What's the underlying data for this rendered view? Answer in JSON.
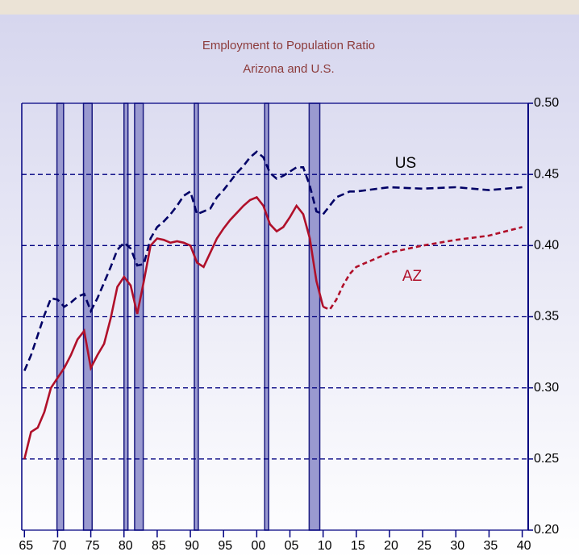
{
  "chart_data": {
    "type": "line",
    "title": "Employment to Population Ratio",
    "subtitle": "Arizona and U.S.",
    "x": [
      1965,
      1966,
      1967,
      1968,
      1969,
      1970,
      1971,
      1972,
      1973,
      1974,
      1975,
      1976,
      1977,
      1978,
      1979,
      1980,
      1981,
      1982,
      1983,
      1984,
      1985,
      1986,
      1987,
      1988,
      1989,
      1990,
      1991,
      1992,
      1993,
      1994,
      1995,
      1996,
      1997,
      1998,
      1999,
      2000,
      2001,
      2002,
      2003,
      2004,
      2005,
      2006,
      2007,
      2008,
      2009,
      2010,
      2011,
      2012,
      2013,
      2014,
      2015,
      2020,
      2025,
      2030,
      2035,
      2040
    ],
    "series": [
      {
        "name": "US",
        "color": "#000066",
        "style": "dashed",
        "values": [
          0.312,
          0.323,
          0.337,
          0.351,
          0.363,
          0.362,
          0.357,
          0.36,
          0.364,
          0.366,
          0.354,
          0.363,
          0.374,
          0.385,
          0.397,
          0.402,
          0.398,
          0.386,
          0.387,
          0.405,
          0.413,
          0.417,
          0.422,
          0.428,
          0.435,
          0.438,
          0.422,
          0.424,
          0.426,
          0.434,
          0.439,
          0.445,
          0.451,
          0.456,
          0.462,
          0.466,
          0.462,
          0.451,
          0.447,
          0.449,
          0.452,
          0.455,
          0.455,
          0.442,
          0.424,
          0.422,
          0.428,
          0.434,
          0.436,
          0.438,
          0.438,
          0.441,
          0.44,
          0.441,
          0.439,
          0.441
        ]
      },
      {
        "name": "AZ",
        "color": "#b0102a",
        "style": "solid",
        "values": [
          0.25,
          0.269,
          0.272,
          0.283,
          0.3,
          0.307,
          0.314,
          0.323,
          0.334,
          0.34,
          0.314,
          0.323,
          0.331,
          0.349,
          0.371,
          0.378,
          0.372,
          0.352,
          0.375,
          0.4,
          0.405,
          0.404,
          0.402,
          0.403,
          0.402,
          0.4,
          0.388,
          0.385,
          0.395,
          0.405,
          0.412,
          0.418,
          0.423,
          0.428,
          0.432,
          0.434,
          0.428,
          0.415,
          0.41,
          0.413,
          0.42,
          0.428,
          0.422,
          0.405,
          0.375,
          0.357,
          0.355,
          0.362,
          0.372,
          0.38,
          0.385,
          0.395,
          0.4,
          0.404,
          0.407,
          0.413
        ]
      }
    ],
    "annotations": [
      "US",
      "AZ"
    ],
    "forecast_start": 2010,
    "recessions": [
      [
        1969.9,
        1970.9
      ],
      [
        1973.9,
        1975.2
      ],
      [
        1980.0,
        1980.6
      ],
      [
        1981.6,
        1982.9
      ],
      [
        1990.6,
        1991.2
      ],
      [
        2001.2,
        2001.8
      ],
      [
        2007.9,
        2009.5
      ]
    ],
    "xlim": [
      1964.6,
      2040.9
    ],
    "xticks": [
      {
        "value": 1965,
        "label": "65"
      },
      {
        "value": 1970,
        "label": "70"
      },
      {
        "value": 1975,
        "label": "75"
      },
      {
        "value": 1980,
        "label": "80"
      },
      {
        "value": 1985,
        "label": "85"
      },
      {
        "value": 1990,
        "label": "90"
      },
      {
        "value": 1995,
        "label": "95"
      },
      {
        "value": 2000,
        "label": "00"
      },
      {
        "value": 2005,
        "label": "05"
      },
      {
        "value": 2010,
        "label": "10"
      },
      {
        "value": 2015,
        "label": "15"
      },
      {
        "value": 2020,
        "label": "20"
      },
      {
        "value": 2025,
        "label": "25"
      },
      {
        "value": 2030,
        "label": "30"
      },
      {
        "value": 2035,
        "label": "35"
      },
      {
        "value": 2040,
        "label": "40"
      }
    ],
    "ylim": [
      0.2,
      0.5
    ],
    "yticks": [
      {
        "value": 0.2,
        "label": "0.20"
      },
      {
        "value": 0.25,
        "label": "0.25"
      },
      {
        "value": 0.3,
        "label": "0.30"
      },
      {
        "value": 0.35,
        "label": "0.35"
      },
      {
        "value": 0.4,
        "label": "0.40"
      },
      {
        "value": 0.45,
        "label": "0.45"
      },
      {
        "value": 0.5,
        "label": "0.50"
      }
    ],
    "grid": true
  }
}
